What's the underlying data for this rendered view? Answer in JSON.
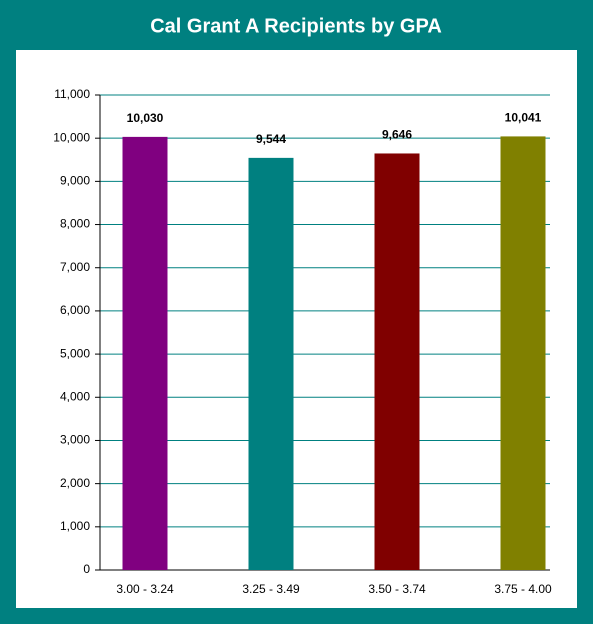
{
  "chart_data": {
    "type": "bar",
    "title": "Cal Grant A Recipients by GPA",
    "categories": [
      "3.00 - 3.24",
      "3.25 - 3.49",
      "3.50 - 3.74",
      "3.75 - 4.00"
    ],
    "values": [
      10030,
      9544,
      9646,
      10041
    ],
    "value_labels": [
      "10,030",
      "9,544",
      "9,646",
      "10,041"
    ],
    "colors": [
      "#800080",
      "#008080",
      "#800000",
      "#808000"
    ],
    "ylim": [
      0,
      11000
    ],
    "yticks": [
      0,
      {
        "value": 1000,
        "label": "1,000"
      },
      {
        "value": 2000,
        "label": "2,000"
      },
      {
        "value": 3000,
        "label": "3,000"
      },
      {
        "value": 4000,
        "label": "4,000"
      },
      {
        "value": 5000,
        "label": "5,000"
      },
      {
        "value": 6000,
        "label": "6,000"
      },
      {
        "value": 7000,
        "label": "7,000"
      },
      {
        "value": 8000,
        "label": "8,000"
      },
      {
        "value": 9000,
        "label": "9,000"
      },
      {
        "value": 10000,
        "label": "10,000"
      },
      {
        "value": 11000,
        "label": "11,000"
      }
    ],
    "grid": true
  }
}
